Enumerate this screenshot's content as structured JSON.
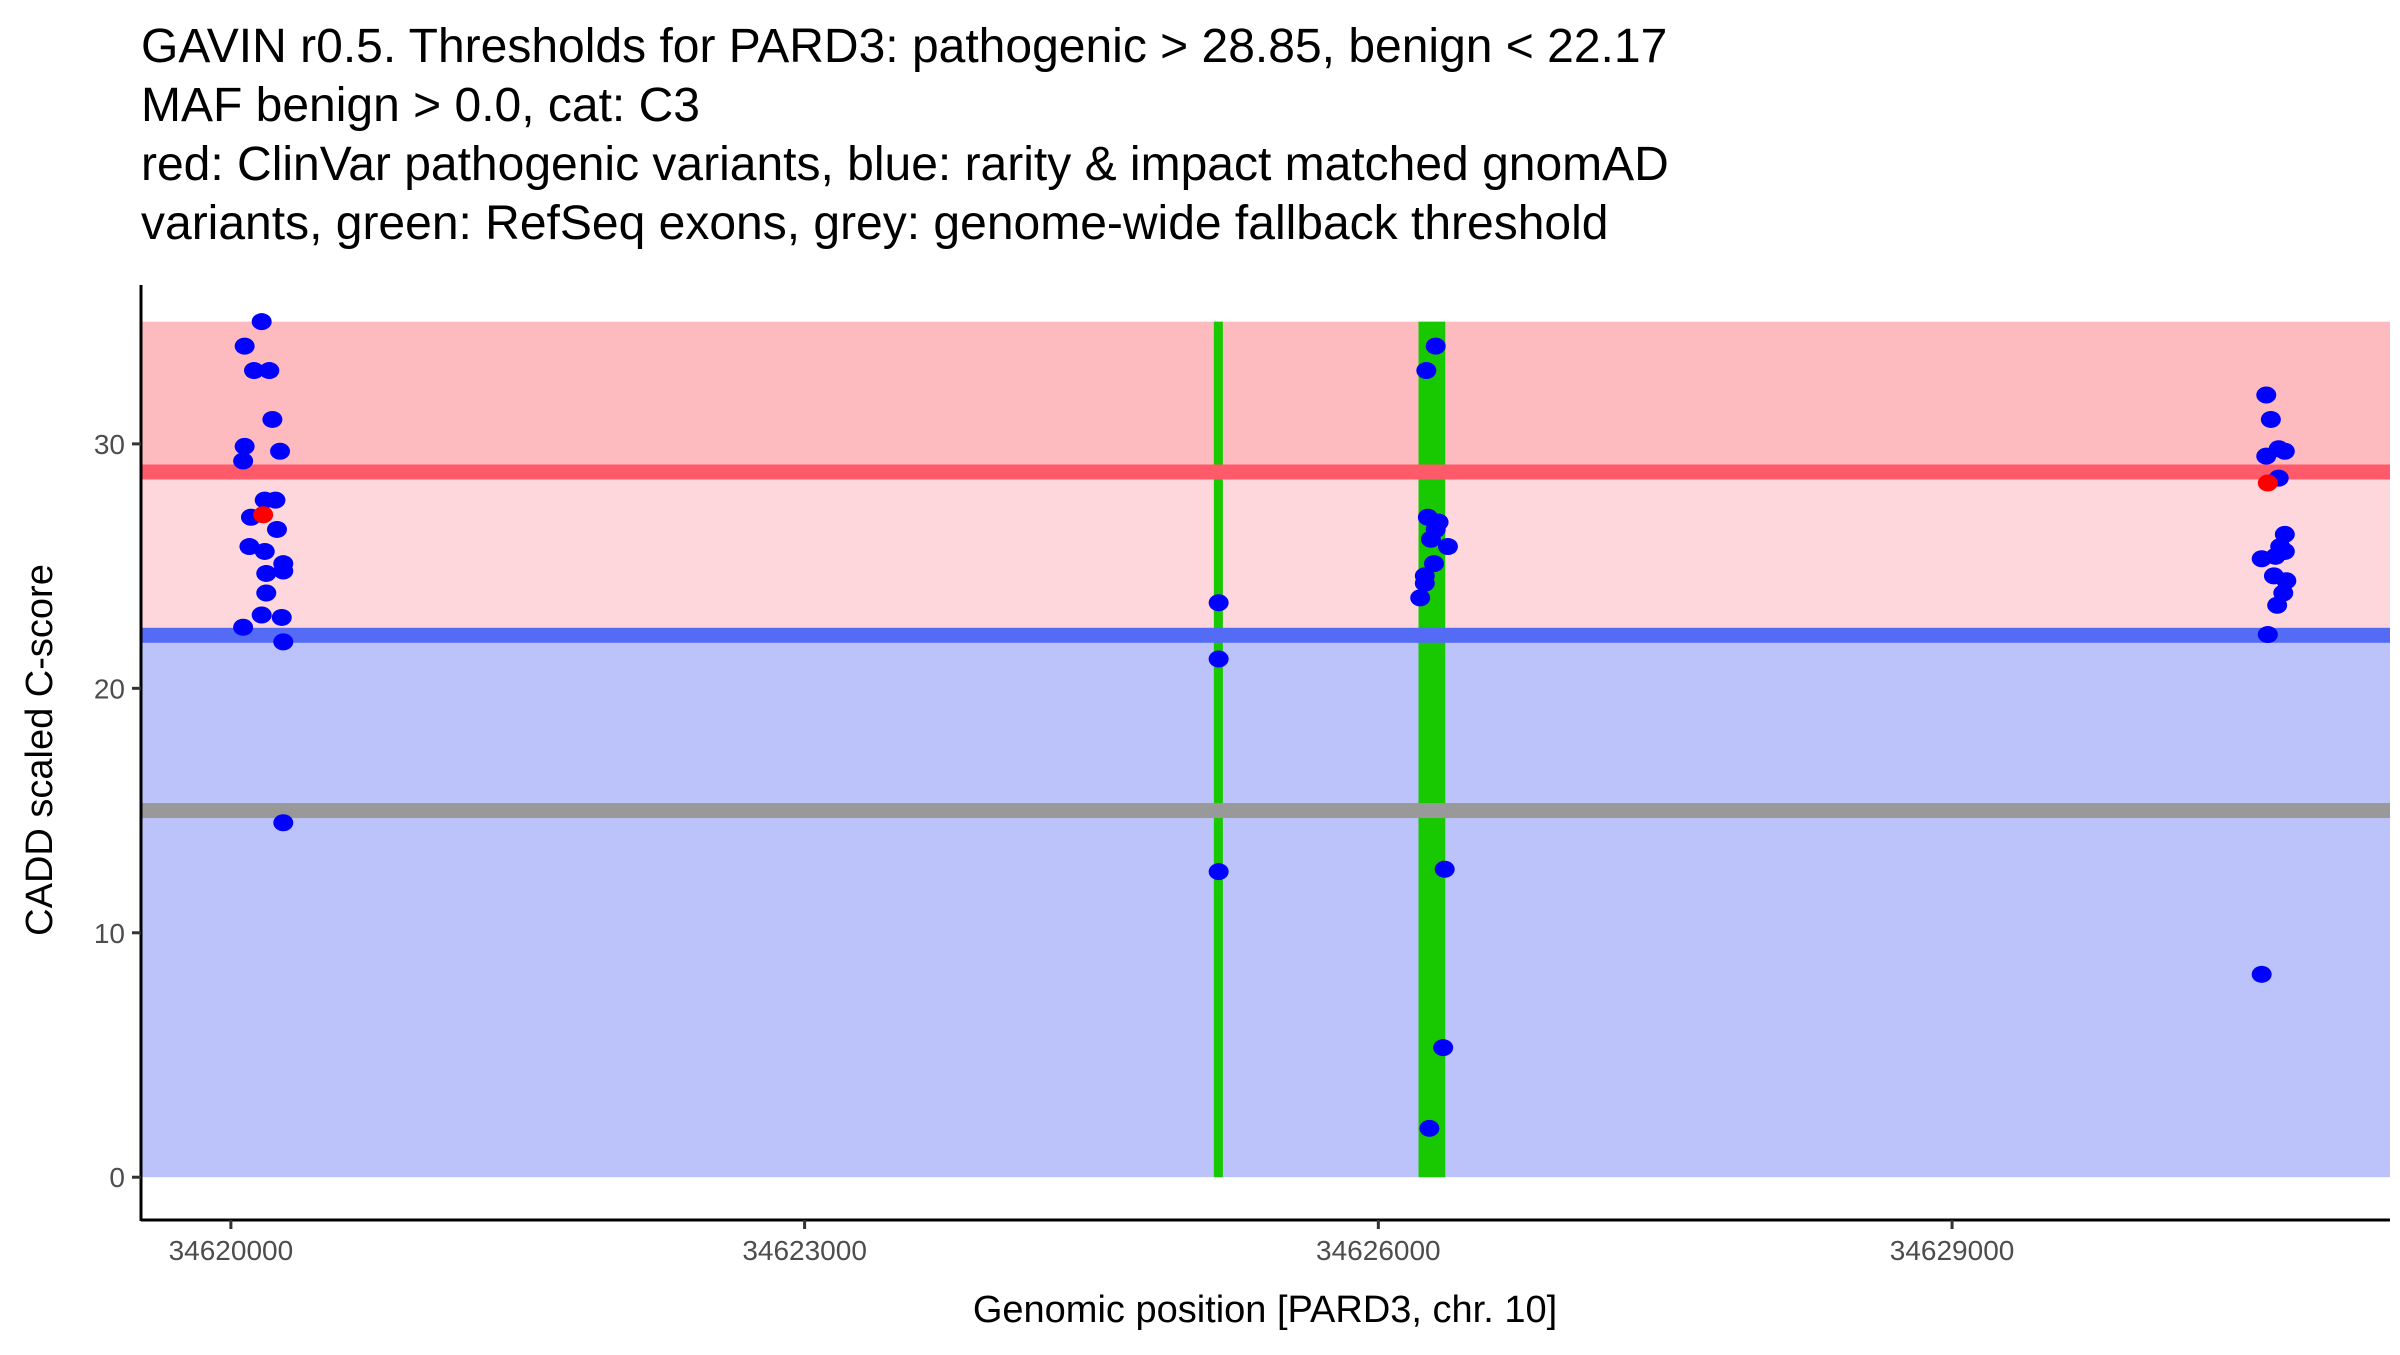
{
  "chart_data": {
    "type": "scatter",
    "title_lines": [
      "GAVIN r0.5. Thresholds for PARD3: pathogenic > 28.85, benign < 22.17",
      "MAF benign > 0.0, cat: C3",
      "red: ClinVar pathogenic variants, blue: rarity & impact matched gnomAD",
      "variants, green: RefSeq exons, grey: genome-wide fallback threshold"
    ],
    "xlabel": "Genomic position [PARD3, chr. 10]",
    "ylabel": "CADD scaled C-score",
    "xlim": [
      34619530,
      34631290
    ],
    "ylim": [
      -1.75,
      36.5
    ],
    "x_ticks": [
      34620000,
      34623000,
      34626000,
      34629000
    ],
    "x_tick_labels": [
      "34620000",
      "34623000",
      "34626000",
      "34629000"
    ],
    "y_ticks": [
      0,
      10,
      20,
      30
    ],
    "y_tick_labels": [
      "0",
      "10",
      "20",
      "30"
    ],
    "thresholds": {
      "pathogenic": 28.85,
      "benign": 22.17,
      "fallback": 15.0,
      "max": 35
    },
    "colors": {
      "pathogenic_band": "#FDBBC0",
      "pathogenic_line": "#FF5A69",
      "intermediate_band": "#FED7DC",
      "benign_line": "#536BF5",
      "benign_band": "#BCC2FA",
      "fallback_line": "#999999",
      "exon": "#18C800",
      "gnomad": "#0000FF",
      "clinvar": "#FF0000"
    },
    "exons": [
      {
        "start": 34625140,
        "end": 34625180
      },
      {
        "start": 34626210,
        "end": 34626350
      }
    ],
    "series": [
      {
        "name": "gnomAD",
        "color": "#0000FF",
        "points": [
          [
            34620161,
            35.0
          ],
          [
            34620072,
            34.0
          ],
          [
            34620121,
            33.0
          ],
          [
            34620201,
            33.0
          ],
          [
            34620217,
            31.0
          ],
          [
            34620072,
            29.9
          ],
          [
            34620064,
            29.3
          ],
          [
            34620257,
            29.7
          ],
          [
            34620177,
            27.7
          ],
          [
            34620233,
            27.7
          ],
          [
            34620105,
            27.0
          ],
          [
            34620241,
            26.5
          ],
          [
            34620097,
            25.8
          ],
          [
            34620177,
            25.6
          ],
          [
            34620274,
            25.1
          ],
          [
            34620274,
            24.8
          ],
          [
            34620185,
            24.7
          ],
          [
            34620185,
            23.9
          ],
          [
            34620161,
            23.0
          ],
          [
            34620266,
            22.9
          ],
          [
            34620064,
            22.5
          ],
          [
            34620274,
            21.9
          ],
          [
            34620274,
            14.5
          ],
          [
            34625165,
            23.5
          ],
          [
            34625165,
            21.2
          ],
          [
            34625165,
            12.5
          ],
          [
            34626300,
            34.0
          ],
          [
            34626251,
            33.0
          ],
          [
            34626259,
            27.0
          ],
          [
            34626315,
            26.8
          ],
          [
            34626300,
            26.5
          ],
          [
            34626275,
            26.1
          ],
          [
            34626364,
            25.8
          ],
          [
            34626291,
            25.1
          ],
          [
            34626243,
            24.6
          ],
          [
            34626243,
            24.3
          ],
          [
            34626219,
            23.7
          ],
          [
            34626347,
            12.6
          ],
          [
            34626339,
            5.3
          ],
          [
            34626267,
            2.0
          ],
          [
            34630643,
            32.0
          ],
          [
            34630667,
            31.0
          ],
          [
            34630643,
            29.5
          ],
          [
            34630708,
            29.8
          ],
          [
            34630740,
            29.7
          ],
          [
            34630708,
            28.6
          ],
          [
            34630740,
            26.3
          ],
          [
            34630716,
            25.8
          ],
          [
            34630619,
            25.3
          ],
          [
            34630691,
            25.4
          ],
          [
            34630740,
            25.6
          ],
          [
            34630683,
            24.6
          ],
          [
            34630748,
            24.4
          ],
          [
            34630732,
            23.9
          ],
          [
            34630700,
            23.4
          ],
          [
            34630651,
            22.2
          ],
          [
            34630619,
            8.3
          ]
        ]
      },
      {
        "name": "ClinVar",
        "color": "#FF0000",
        "points": [
          [
            34620169,
            27.1
          ],
          [
            34630651,
            28.4
          ]
        ]
      }
    ]
  }
}
